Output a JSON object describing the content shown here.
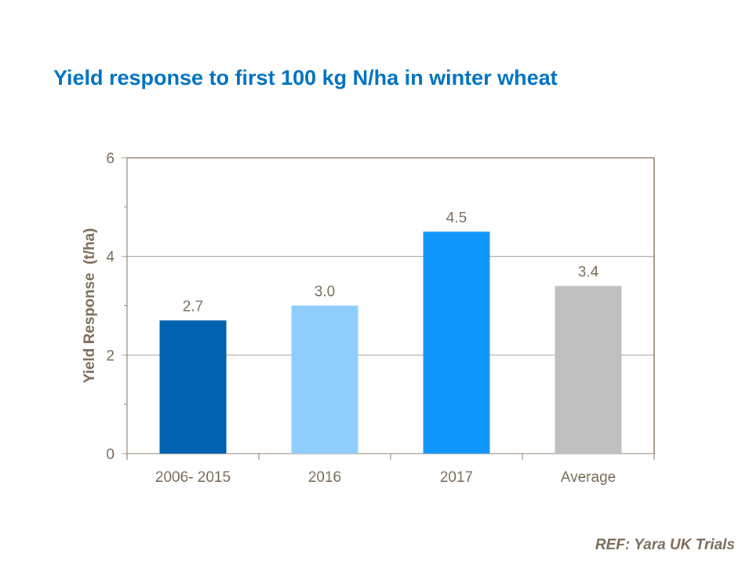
{
  "chart_data": {
    "type": "bar",
    "title": "Yield response to first 100 kg N/ha in winter wheat",
    "xlabel": "",
    "ylabel": "Yield Response  (t/ha)",
    "categories": [
      "2006- 2015",
      "2016",
      "2017",
      "Average"
    ],
    "values": [
      2.7,
      3.0,
      4.5,
      3.4
    ],
    "data_labels": [
      "2.7",
      "3.0",
      "4.5",
      "3.4"
    ],
    "bar_colors": [
      "#0061ae",
      "#8ecdfc",
      "#1096fa",
      "#bfbfbf"
    ],
    "ylim": [
      0,
      6
    ],
    "yticks": [
      0,
      2,
      4,
      6
    ],
    "ytick_labels": [
      "0",
      "2",
      "4",
      "6"
    ],
    "minor_yticks": [
      1,
      3,
      5
    ],
    "grid": true,
    "legend": "none"
  },
  "footer": {
    "ref": "REF: Yara UK Trials"
  },
  "colors": {
    "title": "#0070c0",
    "text": "#7a6a58",
    "axis": "#8a7a68",
    "grid": "#a09486"
  }
}
